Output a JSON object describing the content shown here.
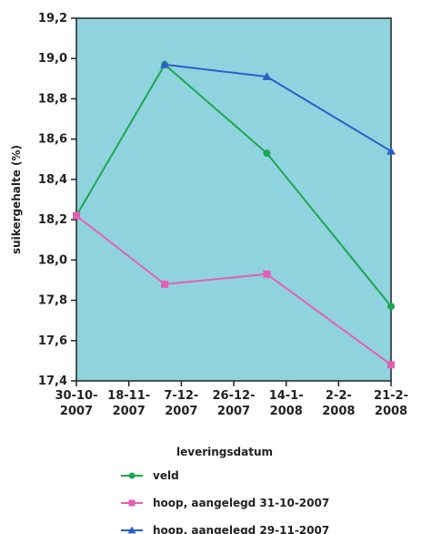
{
  "chart_data": {
    "type": "line",
    "xlabel": "leveringsdatum",
    "ylabel": "suikergehalte (%)",
    "ylim": [
      17.4,
      19.2
    ],
    "yticks": [
      "19,2",
      "19,0",
      "18,8",
      "18,6",
      "18,4",
      "18,2",
      "18,0",
      "17,8",
      "17,6",
      "17,4"
    ],
    "xlim": [
      "2007-10-30",
      "2008-02-21"
    ],
    "xticks": [
      {
        "date": "2007-10-30",
        "label": [
          "30-10-",
          "2007"
        ]
      },
      {
        "date": "2007-11-18",
        "label": [
          "18-11-",
          "2007"
        ]
      },
      {
        "date": "2007-12-07",
        "label": [
          "7-12-",
          "2007"
        ]
      },
      {
        "date": "2007-12-26",
        "label": [
          "26-12-",
          "2007"
        ]
      },
      {
        "date": "2008-01-14",
        "label": [
          "14-1-",
          "2008"
        ]
      },
      {
        "date": "2008-02-02",
        "label": [
          "2-2-",
          "2008"
        ]
      },
      {
        "date": "2008-02-21",
        "label": [
          "21-2-",
          "2008"
        ]
      }
    ],
    "grid": false,
    "legend_position": "bottom",
    "plot_background": "#8fd3df",
    "series": [
      {
        "name": "veld",
        "color": "#1fa650",
        "marker": "circle",
        "points": [
          {
            "x": "2007-10-30",
            "y": 18.22
          },
          {
            "x": "2007-12-01",
            "y": 18.97
          },
          {
            "x": "2008-01-07",
            "y": 18.53
          },
          {
            "x": "2008-02-21",
            "y": 17.77
          }
        ]
      },
      {
        "name": "hoop, aangelegd 31-10-2007",
        "color": "#e35fb7",
        "marker": "square",
        "points": [
          {
            "x": "2007-10-30",
            "y": 18.22
          },
          {
            "x": "2007-12-01",
            "y": 17.88
          },
          {
            "x": "2008-01-07",
            "y": 17.93
          },
          {
            "x": "2008-02-21",
            "y": 17.48
          }
        ]
      },
      {
        "name": "hoop, aangelegd 29-11-2007",
        "color": "#2b5fc9",
        "marker": "triangle",
        "points": [
          {
            "x": "2007-12-01",
            "y": 18.97
          },
          {
            "x": "2008-01-07",
            "y": 18.91
          },
          {
            "x": "2008-02-21",
            "y": 18.54
          }
        ]
      }
    ]
  }
}
